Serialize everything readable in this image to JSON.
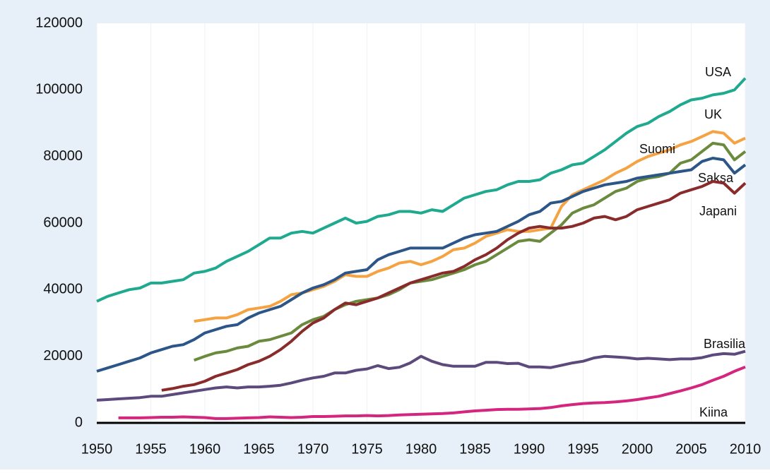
{
  "chart_data": {
    "type": "line",
    "x": [
      1950,
      1951,
      1952,
      1953,
      1954,
      1955,
      1956,
      1957,
      1958,
      1959,
      1960,
      1961,
      1962,
      1963,
      1964,
      1965,
      1966,
      1967,
      1968,
      1969,
      1970,
      1971,
      1972,
      1973,
      1974,
      1975,
      1976,
      1977,
      1978,
      1979,
      1980,
      1981,
      1982,
      1983,
      1984,
      1985,
      1986,
      1987,
      1988,
      1989,
      1990,
      1991,
      1992,
      1993,
      1994,
      1995,
      1996,
      1997,
      1998,
      1999,
      2000,
      2001,
      2002,
      2003,
      2004,
      2005,
      2006,
      2007,
      2008,
      2009,
      2010
    ],
    "xlim": [
      1950,
      2010
    ],
    "xticks": [
      1950,
      1955,
      1960,
      1965,
      1970,
      1975,
      1980,
      1985,
      1990,
      1995,
      2000,
      2005,
      2010
    ],
    "ylim": [
      0,
      120000
    ],
    "yticks": [
      0,
      20000,
      40000,
      60000,
      80000,
      100000,
      120000
    ],
    "series": [
      {
        "name": "USA",
        "color": "#1fa98f",
        "values": [
          36500,
          38000,
          39000,
          40000,
          40500,
          42000,
          42000,
          42500,
          43000,
          45000,
          45500,
          46500,
          48500,
          50000,
          51500,
          53500,
          55500,
          55500,
          57000,
          57500,
          57000,
          58500,
          60000,
          61500,
          60000,
          60500,
          62000,
          62500,
          63500,
          63500,
          63000,
          64000,
          63500,
          65500,
          67500,
          68500,
          69500,
          70000,
          71500,
          72500,
          72500,
          73000,
          75000,
          76000,
          77500,
          78000,
          80000,
          82000,
          84500,
          87000,
          89000,
          90000,
          92000,
          93500,
          95500,
          97000,
          97500,
          98500,
          99000,
          100000,
          103500
        ]
      },
      {
        "name": "UK",
        "color": "#f5a342",
        "values": [
          null,
          null,
          null,
          null,
          null,
          null,
          null,
          null,
          null,
          30500,
          31000,
          31500,
          31500,
          32500,
          34000,
          34500,
          35000,
          36500,
          38500,
          39000,
          40000,
          41000,
          42500,
          44500,
          44000,
          44000,
          45500,
          46500,
          48000,
          48500,
          47500,
          48500,
          50000,
          52000,
          52500,
          54000,
          56000,
          57000,
          58000,
          57500,
          57500,
          58000,
          58500,
          65000,
          68500,
          70000,
          71500,
          73000,
          75000,
          76500,
          78500,
          80000,
          81000,
          82000,
          83500,
          84500,
          86000,
          87500,
          87000,
          84000,
          85500
        ]
      },
      {
        "name": "Suomi",
        "color": "#6a8a3e",
        "values": [
          null,
          null,
          null,
          null,
          null,
          null,
          null,
          null,
          null,
          18800,
          20000,
          21000,
          21500,
          22500,
          23000,
          24500,
          25000,
          26000,
          27000,
          29500,
          31000,
          32000,
          34000,
          35500,
          36500,
          37000,
          37500,
          38500,
          40000,
          42000,
          42500,
          43000,
          44000,
          45000,
          46000,
          47500,
          48500,
          50500,
          52500,
          54500,
          55000,
          54500,
          57000,
          59500,
          63000,
          64500,
          65500,
          67500,
          69500,
          70500,
          72500,
          73500,
          74000,
          75000,
          78000,
          79000,
          81500,
          84000,
          83500,
          79000,
          81500
        ]
      },
      {
        "name": "Saksa",
        "color": "#2c5687",
        "values": [
          15500,
          16500,
          17500,
          18500,
          19500,
          21000,
          22000,
          23000,
          23500,
          25000,
          27000,
          28000,
          29000,
          29500,
          31500,
          33000,
          34000,
          35000,
          37000,
          39000,
          40500,
          41500,
          43000,
          45000,
          45500,
          46000,
          49000,
          50500,
          51500,
          52500,
          52500,
          52500,
          52500,
          54000,
          55500,
          56500,
          57000,
          57500,
          59000,
          60500,
          62500,
          63500,
          66000,
          66500,
          68000,
          69500,
          70500,
          71500,
          72000,
          72500,
          73500,
          74000,
          74500,
          75000,
          75500,
          76000,
          78500,
          79500,
          79000,
          75000,
          77500
        ]
      },
      {
        "name": "Japani",
        "color": "#8a2b2b",
        "values": [
          null,
          null,
          null,
          null,
          null,
          null,
          9800,
          10300,
          11000,
          11500,
          12500,
          14000,
          15000,
          16000,
          17500,
          18500,
          20000,
          22000,
          24500,
          27500,
          30000,
          31500,
          34000,
          36000,
          35500,
          36500,
          37500,
          39000,
          40500,
          42000,
          43000,
          44000,
          45000,
          45500,
          47000,
          49000,
          50500,
          52500,
          55000,
          57000,
          58500,
          59000,
          58500,
          58500,
          59000,
          60000,
          61500,
          62000,
          61000,
          62000,
          64000,
          65000,
          66000,
          67000,
          69000,
          70000,
          71000,
          72500,
          72000,
          69000,
          72000
        ]
      },
      {
        "name": "Brasilia",
        "color": "#5c4a7c",
        "values": [
          6800,
          7000,
          7200,
          7400,
          7600,
          8000,
          8000,
          8500,
          9000,
          9500,
          10000,
          10500,
          10800,
          10500,
          10800,
          10800,
          11000,
          11300,
          12000,
          12800,
          13500,
          14000,
          15000,
          15000,
          15800,
          16200,
          17200,
          16300,
          16700,
          18000,
          20000,
          18500,
          17500,
          17000,
          17000,
          17000,
          18200,
          18200,
          17800,
          17900,
          16800,
          16800,
          16600,
          17300,
          18000,
          18500,
          19500,
          20000,
          19800,
          19600,
          19200,
          19400,
          19200,
          19000,
          19200,
          19200,
          19600,
          20400,
          20800,
          20600,
          21500
        ]
      },
      {
        "name": "Kiina",
        "color": "#d4267e",
        "values": [
          null,
          null,
          1500,
          1500,
          1500,
          1600,
          1700,
          1700,
          1800,
          1700,
          1600,
          1300,
          1300,
          1400,
          1500,
          1600,
          1800,
          1700,
          1600,
          1700,
          1900,
          1900,
          2000,
          2100,
          2100,
          2200,
          2100,
          2200,
          2400,
          2500,
          2600,
          2700,
          2800,
          3000,
          3300,
          3600,
          3800,
          4000,
          4100,
          4100,
          4200,
          4300,
          4600,
          5100,
          5500,
          5800,
          6000,
          6100,
          6300,
          6600,
          7000,
          7500,
          8000,
          8800,
          9600,
          10500,
          11500,
          12800,
          14000,
          15500,
          16800
        ]
      }
    ]
  }
}
